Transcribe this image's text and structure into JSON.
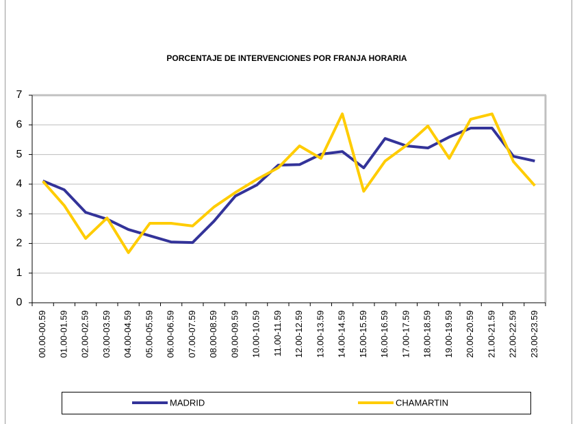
{
  "chart_data": {
    "type": "line",
    "title": "PORCENTAJE DE INTERVENCIONES POR FRANJA HORARIA",
    "categories": [
      "00.00-00.59",
      "01.00-01.59",
      "02.00-02.59",
      "03.00-03.59",
      "04.00-04.59",
      "05.00-05.59",
      "06.00-06.59",
      "07.00-07.59",
      "08.00-08.59",
      "09.00-09.59",
      "10.00-10.59",
      "11.00-11.59",
      "12.00-12.59",
      "13.00-13.59",
      "14.00-14.59",
      "15.00-15.59",
      "16.00-16.59",
      "17.00-17.59",
      "18.00-18.59",
      "19.00-19.59",
      "20.00-20.59",
      "21.00-21.59",
      "22.00-22.59",
      "23.00-23.59"
    ],
    "series": [
      {
        "name": "MADRID",
        "color": "#333399",
        "values": [
          4.11,
          3.81,
          3.05,
          2.82,
          2.47,
          2.26,
          2.05,
          2.03,
          2.75,
          3.6,
          3.97,
          4.64,
          4.66,
          5.01,
          5.1,
          4.55,
          5.54,
          5.29,
          5.22,
          5.59,
          5.89,
          5.89,
          4.94,
          4.78
        ]
      },
      {
        "name": "CHAMARTIN",
        "color": "#ffcc00",
        "values": [
          4.1,
          3.28,
          2.17,
          2.86,
          1.69,
          2.68,
          2.68,
          2.59,
          3.23,
          3.72,
          4.16,
          4.55,
          5.29,
          4.87,
          6.37,
          3.76,
          4.78,
          5.31,
          5.96,
          4.87,
          6.19,
          6.37,
          4.76,
          3.95
        ]
      }
    ],
    "ylim": [
      0,
      7
    ],
    "yticks": [
      0,
      1,
      2,
      3,
      4,
      5,
      6,
      7
    ],
    "grid": true,
    "legend": "bottom"
  }
}
